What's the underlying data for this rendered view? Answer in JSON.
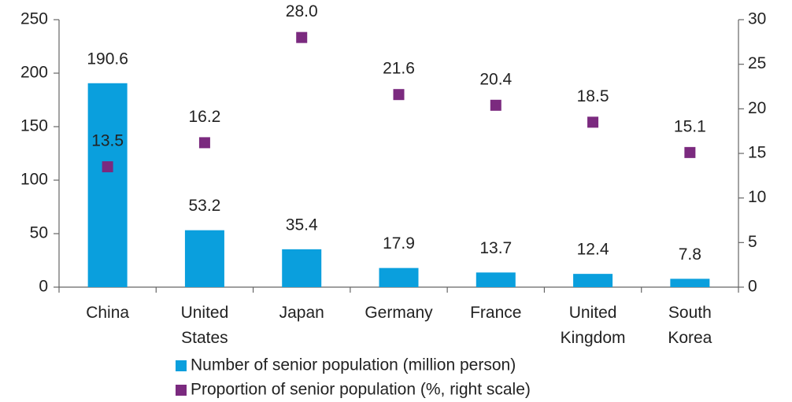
{
  "chart_data": {
    "type": "bar",
    "categories": [
      "China",
      "United States",
      "Japan",
      "Germany",
      "France",
      "United Kingdom",
      "South Korea"
    ],
    "series": [
      {
        "name": "Number of senior population (million person)",
        "color": "#0a9fdd",
        "values": [
          190.6,
          53.2,
          35.4,
          17.9,
          13.7,
          12.4,
          7.8
        ]
      },
      {
        "name": "Proportion of senior population (%, right scale)",
        "color": "#7b2a7f",
        "axis": "y2",
        "marker": "square",
        "values": [
          13.5,
          16.2,
          28.0,
          21.6,
          20.4,
          18.5,
          15.1
        ],
        "value_labels": [
          "13.5",
          "16.2",
          "28.0",
          "21.6",
          "20.4",
          "18.5",
          "15.1"
        ]
      }
    ],
    "ylim": [
      0,
      250
    ],
    "yticks": [
      0,
      50,
      100,
      150,
      200,
      250
    ],
    "y2lim": [
      0,
      30
    ],
    "y2ticks": [
      0,
      5,
      10,
      15,
      20,
      25,
      30
    ],
    "grid": false
  }
}
